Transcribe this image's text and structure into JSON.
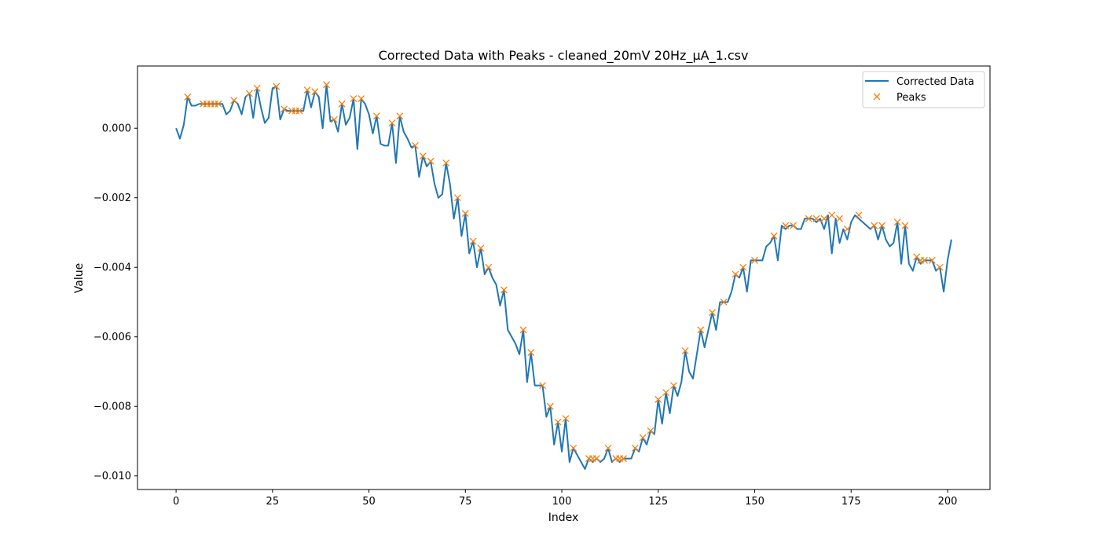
{
  "chart_data": {
    "type": "line",
    "title": "Corrected Data with Peaks - cleaned_20mV 20Hz_µA_1.csv",
    "xlabel": "Index",
    "ylabel": "Value",
    "xlim": [
      -10,
      211
    ],
    "ylim": [
      -0.01039,
      0.00179
    ],
    "x_ticks": [
      0,
      25,
      50,
      75,
      100,
      125,
      150,
      175,
      200
    ],
    "x_tick_labels": [
      "0",
      "25",
      "50",
      "75",
      "100",
      "125",
      "150",
      "175",
      "200"
    ],
    "y_ticks": [
      0.0,
      -0.002,
      -0.004,
      -0.006,
      -0.008,
      -0.01
    ],
    "y_tick_labels": [
      "0.000",
      "−0.002",
      "−0.004",
      "−0.006",
      "−0.008",
      "−0.010"
    ],
    "grid": false,
    "legend_position": "top-right",
    "colors": {
      "line": "#1f77b4",
      "peaks": "#ff7f0e"
    },
    "series": [
      {
        "name": "Corrected Data",
        "type": "line",
        "x": [
          0,
          1,
          2,
          3,
          4,
          5,
          6,
          7,
          8,
          9,
          10,
          11,
          12,
          13,
          14,
          15,
          16,
          17,
          18,
          19,
          20,
          21,
          22,
          23,
          24,
          25,
          26,
          27,
          28,
          29,
          30,
          31,
          32,
          33,
          34,
          35,
          36,
          37,
          38,
          39,
          40,
          41,
          42,
          43,
          44,
          45,
          46,
          47,
          48,
          49,
          50,
          51,
          52,
          53,
          54,
          55,
          56,
          57,
          58,
          59,
          60,
          61,
          62,
          63,
          64,
          65,
          66,
          67,
          68,
          69,
          70,
          71,
          72,
          73,
          74,
          75,
          76,
          77,
          78,
          79,
          80,
          81,
          82,
          83,
          84,
          85,
          86,
          87,
          88,
          89,
          90,
          91,
          92,
          93,
          94,
          95,
          96,
          97,
          98,
          99,
          100,
          101,
          102,
          103,
          104,
          105,
          106,
          107,
          108,
          109,
          110,
          111,
          112,
          113,
          114,
          115,
          116,
          117,
          118,
          119,
          120,
          121,
          122,
          123,
          124,
          125,
          126,
          127,
          128,
          129,
          130,
          131,
          132,
          133,
          134,
          135,
          136,
          137,
          138,
          139,
          140,
          141,
          142,
          143,
          144,
          145,
          146,
          147,
          148,
          149,
          150,
          151,
          152,
          153,
          154,
          155,
          156,
          157,
          158,
          159,
          160,
          161,
          162,
          163,
          164,
          165,
          166,
          167,
          168,
          169,
          170,
          171,
          172,
          173,
          174,
          175,
          176,
          177,
          178,
          179,
          180,
          181,
          182,
          183,
          184,
          185,
          186,
          187,
          188,
          189,
          190,
          191,
          192,
          193,
          194,
          195,
          196,
          197,
          198,
          199,
          200,
          201
        ],
        "y": [
          0.0,
          -0.0003,
          0.0001,
          0.0009,
          0.00065,
          0.00065,
          0.0007,
          0.0007,
          0.0007,
          0.0007,
          0.0007,
          0.0007,
          0.0007,
          0.0004,
          0.0005,
          0.0008,
          0.0007,
          0.0004,
          0.0009,
          0.001,
          0.0003,
          0.00115,
          0.0006,
          0.00015,
          0.0003,
          0.00115,
          0.0012,
          0.00025,
          0.00055,
          0.0005,
          0.0005,
          0.0005,
          0.0005,
          0.0005,
          0.0011,
          0.0006,
          0.00105,
          0.0009,
          0.0,
          0.00125,
          0.0002,
          0.00025,
          -0.0001,
          0.0007,
          0.0001,
          0.0003,
          0.00085,
          -0.0006,
          0.00085,
          0.0007,
          0.0004,
          -0.00015,
          0.00035,
          -0.00045,
          -0.0005,
          -0.0005,
          0.00015,
          -0.001,
          0.00035,
          -0.0001,
          -0.0003,
          -0.00055,
          -0.0005,
          -0.0014,
          -0.0008,
          -0.0011,
          -0.00095,
          -0.0016,
          -0.002,
          -0.0019,
          -0.001,
          -0.0016,
          -0.0026,
          -0.002,
          -0.0031,
          -0.00245,
          -0.0036,
          -0.00325,
          -0.004,
          -0.00345,
          -0.0042,
          -0.004,
          -0.0043,
          -0.0045,
          -0.0051,
          -0.00465,
          -0.0058,
          -0.006,
          -0.0062,
          -0.0065,
          -0.0058,
          -0.0073,
          -0.00645,
          -0.0074,
          -0.0074,
          -0.0074,
          -0.0083,
          -0.008,
          -0.0091,
          -0.00845,
          -0.0093,
          -0.00835,
          -0.0096,
          -0.0092,
          -0.0094,
          -0.0096,
          -0.0098,
          -0.0095,
          -0.0096,
          -0.0095,
          -0.0096,
          -0.0095,
          -0.0092,
          -0.0096,
          -0.0095,
          -0.0096,
          -0.0095,
          -0.0095,
          -0.0095,
          -0.0092,
          -0.0093,
          -0.0089,
          -0.0091,
          -0.0087,
          -0.0088,
          -0.0078,
          -0.0085,
          -0.0076,
          -0.0082,
          -0.0074,
          -0.0077,
          -0.0073,
          -0.0064,
          -0.007,
          -0.0072,
          -0.0065,
          -0.0058,
          -0.0063,
          -0.0058,
          -0.0053,
          -0.0058,
          -0.005,
          -0.005,
          -0.005,
          -0.0047,
          -0.0042,
          -0.0043,
          -0.004,
          -0.0047,
          -0.0038,
          -0.0038,
          -0.0038,
          -0.0038,
          -0.0034,
          -0.0033,
          -0.0031,
          -0.0038,
          -0.0028,
          -0.0029,
          -0.0028,
          -0.0028,
          -0.0029,
          -0.0029,
          -0.0026,
          -0.0026,
          -0.0026,
          -0.0027,
          -0.0026,
          -0.0029,
          -0.0025,
          -0.0036,
          -0.0026,
          -0.0033,
          -0.0029,
          -0.0032,
          -0.0027,
          -0.0025,
          -0.0026,
          -0.0027,
          -0.0028,
          -0.0029,
          -0.0028,
          -0.0032,
          -0.0028,
          -0.0032,
          -0.0034,
          -0.0033,
          -0.0027,
          -0.0039,
          -0.0028,
          -0.0039,
          -0.0041,
          -0.0037,
          -0.0039,
          -0.0038,
          -0.0038,
          -0.0038,
          -0.0041,
          -0.004,
          -0.0047,
          -0.0038,
          -0.0032
        ]
      },
      {
        "name": "Peaks",
        "type": "scatter",
        "marker": "x",
        "x": [
          3,
          7,
          8,
          9,
          10,
          11,
          15,
          19,
          21,
          26,
          28,
          30,
          31,
          32,
          34,
          36,
          39,
          41,
          43,
          46,
          48,
          52,
          56,
          58,
          62,
          64,
          66,
          70,
          73,
          75,
          77,
          79,
          81,
          85,
          90,
          92,
          95,
          97,
          99,
          101,
          103,
          107,
          108,
          109,
          112,
          114,
          115,
          116,
          119,
          121,
          123,
          125,
          127,
          129,
          132,
          136,
          139,
          142,
          145,
          147,
          150,
          155,
          158,
          160,
          164,
          166,
          168,
          170,
          172,
          174,
          177,
          181,
          183,
          187,
          189,
          192,
          193,
          194,
          196,
          198
        ],
        "y": [
          0.0009,
          0.0007,
          0.0007,
          0.0007,
          0.0007,
          0.0007,
          0.0008,
          0.001,
          0.00115,
          0.0012,
          0.00055,
          0.0005,
          0.0005,
          0.0005,
          0.0011,
          0.00105,
          0.00125,
          0.00025,
          0.0007,
          0.00085,
          0.00085,
          0.00035,
          0.00015,
          0.00035,
          -0.0005,
          -0.0008,
          -0.00095,
          -0.001,
          -0.002,
          -0.00245,
          -0.00325,
          -0.00345,
          -0.004,
          -0.00465,
          -0.0058,
          -0.00645,
          -0.0074,
          -0.008,
          -0.00845,
          -0.00835,
          -0.0092,
          -0.0095,
          -0.0095,
          -0.0095,
          -0.0092,
          -0.0095,
          -0.0095,
          -0.0095,
          -0.0092,
          -0.0089,
          -0.0087,
          -0.0078,
          -0.0076,
          -0.0074,
          -0.0064,
          -0.0058,
          -0.0053,
          -0.005,
          -0.0042,
          -0.004,
          -0.0038,
          -0.0031,
          -0.0028,
          -0.0028,
          -0.0026,
          -0.0026,
          -0.0026,
          -0.0025,
          -0.0026,
          -0.0029,
          -0.0025,
          -0.0028,
          -0.0028,
          -0.0027,
          -0.0028,
          -0.0037,
          -0.0038,
          -0.0038,
          -0.0038,
          -0.004
        ]
      }
    ],
    "legend": [
      {
        "label": "Corrected Data",
        "marker": "line"
      },
      {
        "label": "Peaks",
        "marker": "x"
      }
    ]
  }
}
